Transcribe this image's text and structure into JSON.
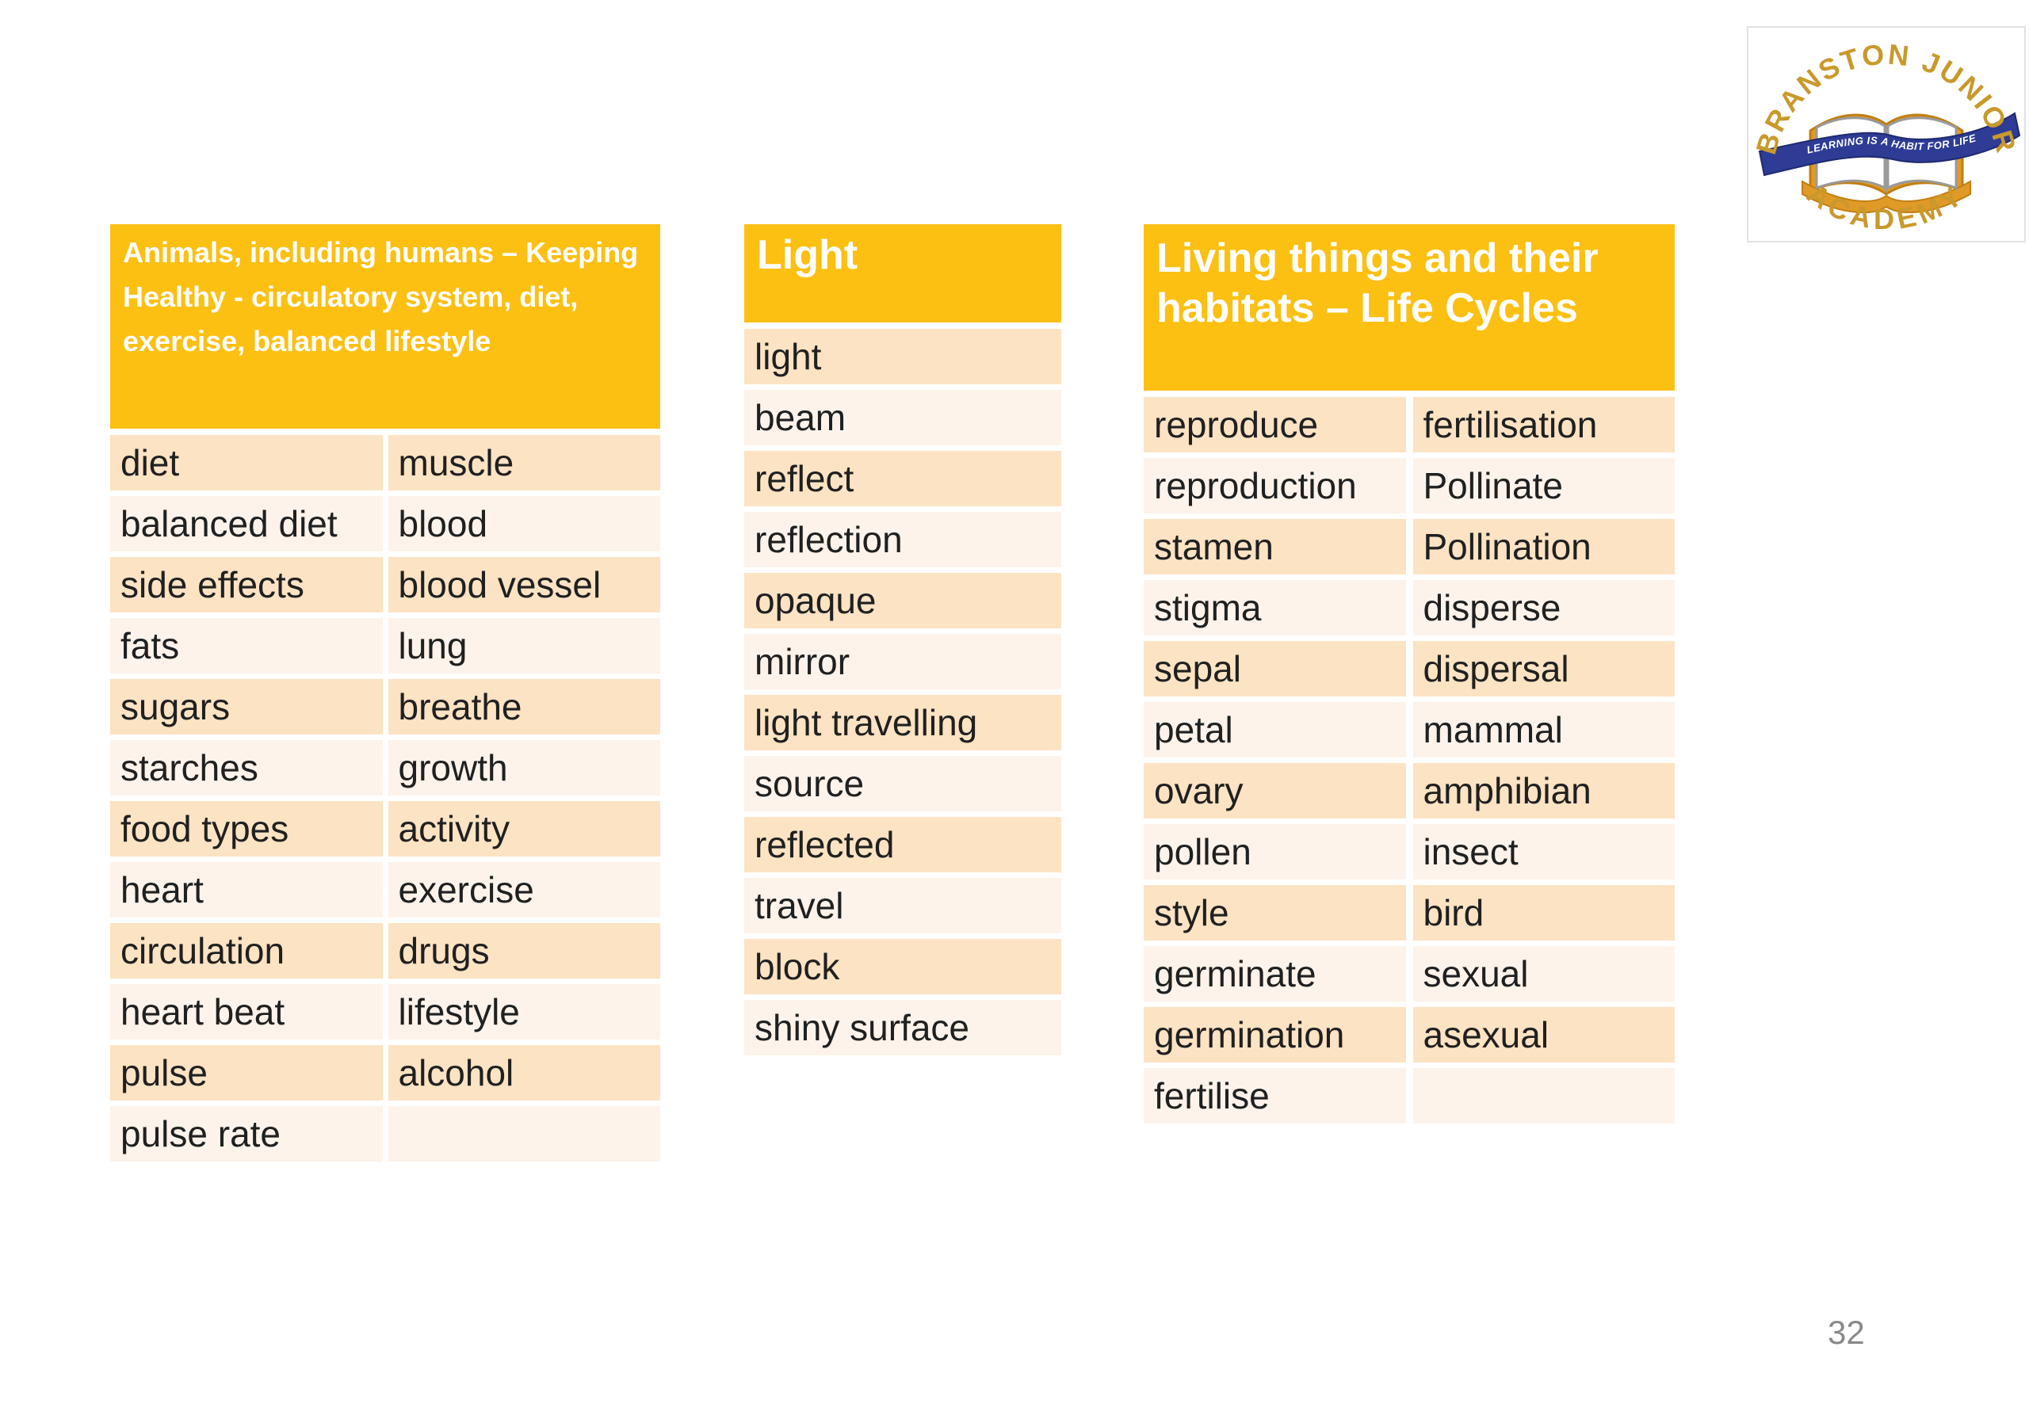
{
  "page": {
    "number": "32"
  },
  "logo": {
    "arc_top": "BRANSTON JUNIOR",
    "arc_bottom": "ACADEMY",
    "ribbon_text": "LEARNING IS A HABIT FOR LIFE"
  },
  "colors": {
    "header_gold": "#FCC013",
    "row_dark": "#FCE3C3",
    "row_light": "#FDF3EA",
    "ribbon_navy": "#2E3C95",
    "logo_gold": "#C9992B"
  },
  "tables": [
    {
      "title": "Animals, including humans – Keeping\nHealthy - circulatory system, diet,\nexercise, balanced lifestyle",
      "columns": 2,
      "rows": [
        [
          "diet",
          "muscle"
        ],
        [
          "balanced diet",
          "blood"
        ],
        [
          "side effects",
          "blood vessel"
        ],
        [
          "fats",
          "lung"
        ],
        [
          "sugars",
          "breathe"
        ],
        [
          "starches",
          "growth"
        ],
        [
          "food types",
          "activity"
        ],
        [
          "heart",
          "exercise"
        ],
        [
          "circulation",
          "drugs"
        ],
        [
          "heart beat",
          "lifestyle"
        ],
        [
          "pulse",
          "alcohol"
        ],
        [
          "pulse rate",
          ""
        ]
      ]
    },
    {
      "title": "Light",
      "columns": 1,
      "rows": [
        [
          "light"
        ],
        [
          "beam"
        ],
        [
          "reflect"
        ],
        [
          "reflection"
        ],
        [
          "opaque"
        ],
        [
          "mirror"
        ],
        [
          "light travelling"
        ],
        [
          "source"
        ],
        [
          "reflected"
        ],
        [
          "travel"
        ],
        [
          "block"
        ],
        [
          "shiny surface"
        ]
      ]
    },
    {
      "title": "Living things and their\nhabitats – Life Cycles",
      "columns": 2,
      "rows": [
        [
          "reproduce",
          "fertilisation"
        ],
        [
          "reproduction",
          "Pollinate"
        ],
        [
          "stamen",
          "Pollination"
        ],
        [
          "stigma",
          "disperse"
        ],
        [
          "sepal",
          "dispersal"
        ],
        [
          "petal",
          "mammal"
        ],
        [
          "ovary",
          "amphibian"
        ],
        [
          "pollen",
          "insect"
        ],
        [
          "style",
          "bird"
        ],
        [
          "germinate",
          "sexual"
        ],
        [
          "germination",
          "asexual"
        ],
        [
          "fertilise",
          ""
        ]
      ]
    }
  ]
}
